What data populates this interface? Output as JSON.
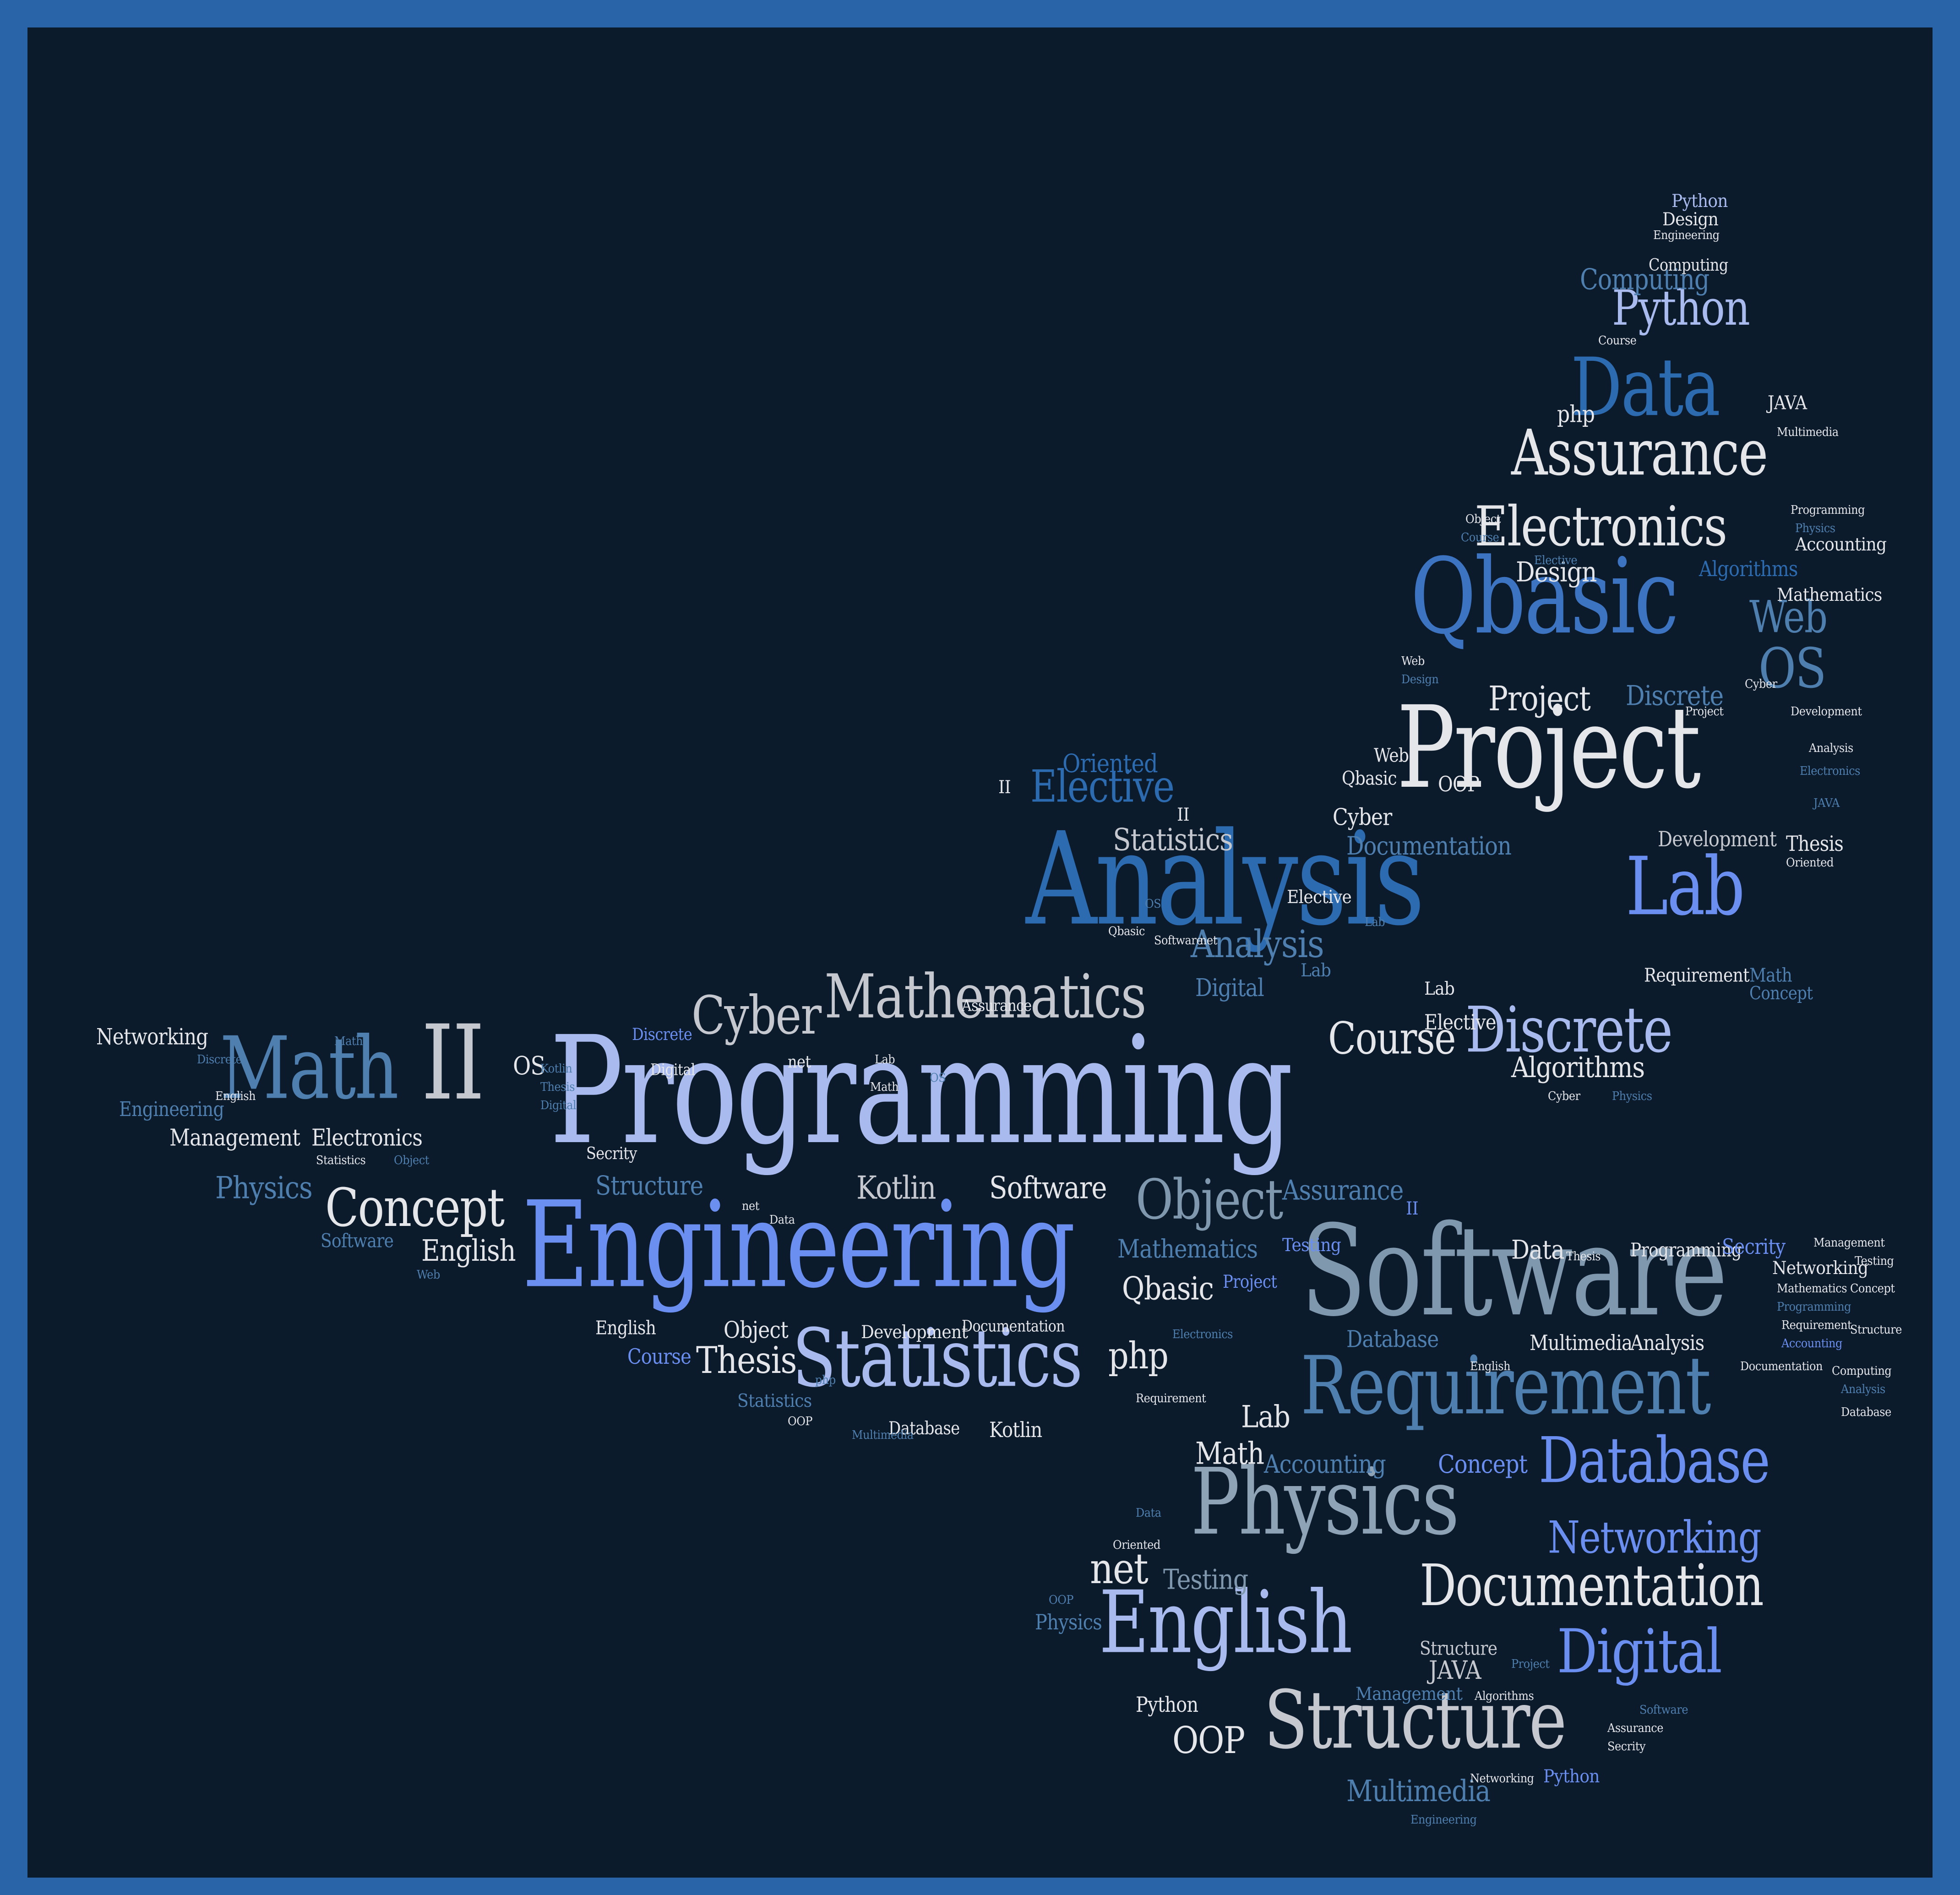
{
  "colors": {
    "border": "#2a64a8",
    "background": "#0c1b2c",
    "white": "#e4e6ea",
    "gray": "#c5c9cf",
    "slate": "#7f98ae",
    "steel": "#4e7fae",
    "blue": "#2d6bb0",
    "light": "#a9bbee",
    "periwinkle": "#6b8ff0"
  },
  "words": {
    "programming": "Programming",
    "engineering": "Engineering",
    "analysis": "Analysis",
    "software": "Software",
    "project": "Project",
    "qbasic": "Qbasic",
    "requirement": "Requirement",
    "physics": "Physics",
    "english": "English",
    "structure": "Structure",
    "statistics": "Statistics",
    "math": "Math",
    "ii": "II",
    "data": "Data",
    "lab": "Lab",
    "discrete": "Discrete",
    "database": "Database",
    "documentation": "Documentation",
    "assurance": "Assurance",
    "electronics": "Electronics",
    "mathematics": "Mathematics",
    "digital": "Digital",
    "object": "Object",
    "python": "Python",
    "networking": "Networking",
    "concept": "Concept",
    "cyber": "Cyber",
    "course": "Course",
    "os": "OS",
    "web": "Web",
    "elective": "Elective",
    "oriented": "Oriented",
    "computing": "Computing",
    "kotlin": "Kotlin",
    "multimedia": "Multimedia",
    "php": "php",
    "oop": "OOP",
    "thesis": "Thesis",
    "net": "net",
    "java": "JAVA",
    "testing": "Testing",
    "accounting": "Accounting",
    "management": "Management",
    "algorithms": "Algorithms",
    "development": "Development",
    "design": "Design",
    "secrity": "Secrity"
  }
}
